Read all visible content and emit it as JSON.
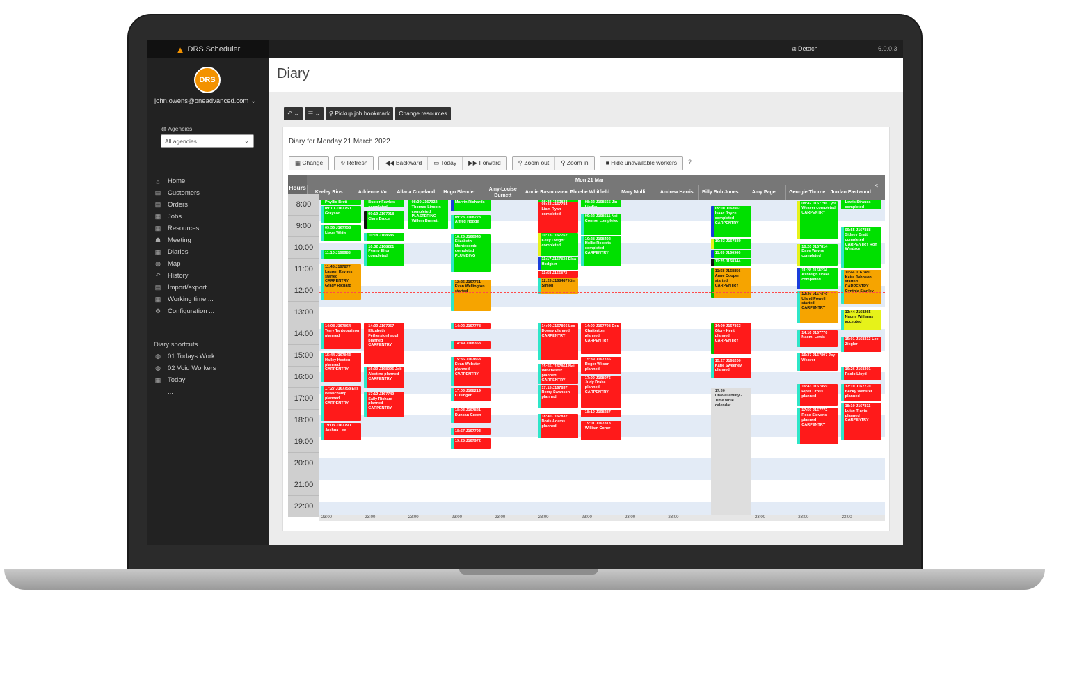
{
  "app": {
    "brand": "DRS Scheduler",
    "logo_text": "DRS",
    "detach_label": "Detach",
    "version": "6.0.0.3"
  },
  "sidebar": {
    "user": "john.owens@oneadvanced.com",
    "agencies_label": "Agencies",
    "agencies_value": "All agencies",
    "nav": [
      {
        "label": "Home",
        "icon": "⌂"
      },
      {
        "label": "Customers",
        "icon": "▤"
      },
      {
        "label": "Orders",
        "icon": "▤"
      },
      {
        "label": "Jobs",
        "icon": "▦"
      },
      {
        "label": "Resources",
        "icon": "▦"
      },
      {
        "label": "Meeting",
        "icon": "☗"
      },
      {
        "label": "Diaries",
        "icon": "▦"
      },
      {
        "label": "Map",
        "icon": "◍"
      },
      {
        "label": "History",
        "icon": "↶"
      },
      {
        "label": "Import/export ...",
        "icon": "▤"
      },
      {
        "label": "Working time ...",
        "icon": "▦"
      },
      {
        "label": "Configuration ...",
        "icon": "⚙"
      }
    ],
    "shortcuts_title": "Diary shortcuts",
    "shortcuts": [
      {
        "label": "01 Todays Work",
        "icon": "◍"
      },
      {
        "label": "02 Void Workers",
        "icon": "◍"
      },
      {
        "label": "Today",
        "icon": "▦"
      },
      {
        "label": "...",
        "icon": ""
      }
    ]
  },
  "page": {
    "title": "Diary"
  },
  "toolbar": {
    "undo": "↶ ⌄",
    "menu": "☰ ⌄",
    "pickup": "Pickup job bookmark",
    "change_resources": "Change resources"
  },
  "diary": {
    "title": "Diary for Monday 21 March 2022",
    "change": "Change",
    "refresh": "Refresh",
    "backward": "Backward",
    "today": "Today",
    "forward": "Forward",
    "zoom_out": "Zoom out",
    "zoom_in": "Zoom in",
    "hide_unavailable": "Hide unavailable workers",
    "help": "?",
    "hours_label": "Hours",
    "date_label": "Mon 21 Mar",
    "workers": [
      "Keeley Rios",
      "Adrienne Vu",
      "Allana Copeland",
      "Hugo Blender",
      "Amy-Louise Burnett",
      "Annie Rasmussen",
      "Phoebe Whitfield",
      "Mary Mulli",
      "Andrew Harris",
      "Billy Bob Jones",
      "Amy Page",
      "Georgie Thorne",
      "Jordan Eastwood"
    ],
    "hours": [
      "8:00",
      "9:00",
      "10:00",
      "11:00",
      "12:00",
      "13:00",
      "14:00",
      "15:00",
      "16:00",
      "17:00",
      "18:00",
      "19:00",
      "20:00",
      "21:00",
      "22:00"
    ],
    "end_label": "23:00",
    "jobs": [
      {
        "col": 0,
        "start": 8.0,
        "end": 8.4,
        "color": "green",
        "edge": "#00e000",
        "text": "Phyllis Brett"
      },
      {
        "col": 0,
        "start": 8.55,
        "end": 9.3,
        "color": "green",
        "edge": "#2ee6c8",
        "text": "09:10 J167750 Grayson"
      },
      {
        "col": 0,
        "start": 9.45,
        "end": 10.2,
        "color": "green",
        "edge": "#2ee6c8",
        "text": "09:36 J167758 Lison White"
      },
      {
        "col": 0,
        "start": 10.6,
        "end": 11.0,
        "color": "green",
        "edge": "#2ee6c8",
        "text": "11:10 J166988"
      },
      {
        "col": 0,
        "start": 11.25,
        "end": 12.9,
        "color": "orange",
        "edge": "#2ee6c8",
        "text": "11:46 J167877 Lauren Keynes started CARPENTRY Grady Richard"
      },
      {
        "col": 0,
        "start": 14.0,
        "end": 15.2,
        "color": "red",
        "edge": "#2ee6c8",
        "text": "14:08 J167864 Terry Tantoparison planned"
      },
      {
        "col": 0,
        "start": 15.35,
        "end": 16.7,
        "color": "red",
        "edge": "#2ee6c8",
        "text": "15:44 J167843 Hailey Heston planned CARPENTRY"
      },
      {
        "col": 0,
        "start": 16.9,
        "end": 18.5,
        "color": "red",
        "edge": "#2ee6c8",
        "text": "17:27 J167758 Elis Beauchamp planned CARPENTRY"
      },
      {
        "col": 0,
        "start": 18.6,
        "end": 19.4,
        "color": "red",
        "edge": "#2ee6c8",
        "text": "19:03 J167790 Joshua Lee"
      },
      {
        "col": 1,
        "start": 8.0,
        "end": 8.6,
        "color": "green",
        "edge": "#00e000",
        "text": "Buster Fawkes completed"
      },
      {
        "col": 1,
        "start": 8.8,
        "end": 9.6,
        "color": "green",
        "edge": "#111111",
        "text": "09:19 J167918 Clare Bruce"
      },
      {
        "col": 1,
        "start": 9.8,
        "end": 10.15,
        "color": "green",
        "edge": "#2ee6c8",
        "text": "10:18 J168585"
      },
      {
        "col": 1,
        "start": 10.3,
        "end": 11.3,
        "color": "green",
        "edge": "#2ee6c8",
        "text": "10:32 J168221 Penny Elton completed"
      },
      {
        "col": 1,
        "start": 14.0,
        "end": 15.9,
        "color": "red",
        "edge": "#ff1a1a",
        "text": "14:00 J167257 Elizabeth Fetherstonhaugh planned CARPENTRY"
      },
      {
        "col": 1,
        "start": 16.0,
        "end": 17.0,
        "color": "red",
        "edge": "#2ee6c8",
        "text": "16:00 J168095 Job Alestine planned CARPENTRY"
      },
      {
        "col": 1,
        "start": 17.15,
        "end": 18.3,
        "color": "red",
        "edge": "#2ee6c8",
        "text": "17:12 J167749 Sally Richard planned CARPENTRY"
      },
      {
        "col": 2,
        "start": 8.0,
        "end": 9.6,
        "color": "green",
        "edge": "#00e000",
        "text": "08:30 J167932 Thomas Lincoln completed PLASTERING Willem Burnett"
      },
      {
        "col": 3,
        "start": 8.0,
        "end": 8.8,
        "color": "green",
        "edge": "#1a3ddb",
        "text": "Marvin Richards"
      },
      {
        "col": 3,
        "start": 8.95,
        "end": 9.6,
        "color": "green",
        "edge": "#2ee6c8",
        "text": "09:23 J168223 Alfred Hodge"
      },
      {
        "col": 3,
        "start": 9.85,
        "end": 11.6,
        "color": "green",
        "edge": "#2ee6c8",
        "text": "10:23 J166946 Elizabeth Montecomb completed PLUMBING"
      },
      {
        "col": 3,
        "start": 11.95,
        "end": 13.4,
        "color": "orange",
        "edge": "#2ee6c8",
        "text": "12:26 J167751 Evan Wellington started"
      },
      {
        "col": 3,
        "start": 14.0,
        "end": 14.25,
        "color": "red",
        "edge": "#2ee6c8",
        "text": "14:02 J167778"
      },
      {
        "col": 3,
        "start": 14.8,
        "end": 15.2,
        "color": "red",
        "edge": "#2ee6c8",
        "text": "14:49 J168353"
      },
      {
        "col": 3,
        "start": 15.55,
        "end": 16.9,
        "color": "red",
        "edge": "#2ee6c8",
        "text": "15:35 J167853 Evan Webster planned CARPENTRY"
      },
      {
        "col": 3,
        "start": 17.0,
        "end": 17.6,
        "color": "red",
        "edge": "#2ee6c8",
        "text": "17:03 J168219 Cusinger"
      },
      {
        "col": 3,
        "start": 17.9,
        "end": 18.6,
        "color": "red",
        "edge": "#2ee6c8",
        "text": "18:03 J167821 Duncan Green"
      },
      {
        "col": 3,
        "start": 18.85,
        "end": 19.15,
        "color": "red",
        "edge": "#2ee6c8",
        "text": "18:57 J167793"
      },
      {
        "col": 3,
        "start": 19.3,
        "end": 19.8,
        "color": "red",
        "edge": "#2ee6c8",
        "text": "19:25 J167972"
      },
      {
        "col": 5,
        "start": 8.0,
        "end": 8.2,
        "color": "green",
        "edge": "#00e000",
        "text": "08:23 J167823"
      },
      {
        "col": 5,
        "start": 8.35,
        "end": 9.8,
        "color": "red",
        "edge": "#ff1a1a",
        "text": "08:33 J167784 Liam Ryan completed"
      },
      {
        "col": 5,
        "start": 9.8,
        "end": 10.85,
        "color": "green",
        "edge": "#e6f21a",
        "text": "10:13 J167762 Kelly Dwight completed"
      },
      {
        "col": 5,
        "start": 10.9,
        "end": 11.5,
        "color": "green",
        "edge": "#1a3ddb",
        "text": "11:17 J167834 Elsa Hodgkin"
      },
      {
        "col": 5,
        "start": 11.55,
        "end": 11.85,
        "color": "red",
        "edge": "#ff1a1a",
        "text": "11:58 J166873"
      },
      {
        "col": 5,
        "start": 11.9,
        "end": 12.6,
        "color": "orange",
        "edge": "#2ee6c8",
        "text": "12:23 J168487 Kim Simon"
      },
      {
        "col": 5,
        "start": 14.0,
        "end": 15.7,
        "color": "red",
        "edge": "#2ee6c8",
        "text": "14:00 J167866 Leo Dowey planned CARPENTRY"
      },
      {
        "col": 5,
        "start": 15.85,
        "end": 16.8,
        "color": "red",
        "edge": "#2ee6c8",
        "text": "15:55 J167864 Neil Winchester planned CARPENTRY"
      },
      {
        "col": 5,
        "start": 16.85,
        "end": 17.9,
        "color": "red",
        "edge": "#2ee6c8",
        "text": "17:15 J167837 Remy Swanson planned"
      },
      {
        "col": 5,
        "start": 18.2,
        "end": 19.3,
        "color": "red",
        "edge": "#2ee6c8",
        "text": "18:40 J167832 Doris Adams planned"
      },
      {
        "col": 6,
        "start": 8.0,
        "end": 8.6,
        "color": "green",
        "edge": "#00e000",
        "text": "08:22 J168565 Jin Lindley"
      },
      {
        "col": 6,
        "start": 8.9,
        "end": 9.9,
        "color": "green",
        "edge": "#2ee6c8",
        "text": "09:22 J168511 Neil Connor completed"
      },
      {
        "col": 6,
        "start": 9.95,
        "end": 11.3,
        "color": "green",
        "edge": "#2ee6c8",
        "text": "10:28 J168492 Hollie Roberts completed CARPENTRY"
      },
      {
        "col": 6,
        "start": 14.0,
        "end": 15.4,
        "color": "red",
        "edge": "#ff1a1a",
        "text": "14:00 J167798 Don Chatterton planned CARPENTRY"
      },
      {
        "col": 6,
        "start": 15.55,
        "end": 16.3,
        "color": "red",
        "edge": "#ff1a1a",
        "text": "15:39 J167785 Roger Wilson planned"
      },
      {
        "col": 6,
        "start": 16.4,
        "end": 17.9,
        "color": "red",
        "edge": "#ff1a1a",
        "text": "17:00 J168076 Judy Drake planned CARPENTRY"
      },
      {
        "col": 6,
        "start": 18.0,
        "end": 18.35,
        "color": "red",
        "edge": "#ff1a1a",
        "text": "18:10 J168287"
      },
      {
        "col": 6,
        "start": 18.5,
        "end": 19.4,
        "color": "red",
        "edge": "#ff1a1a",
        "text": "19:01 J167813 William Coner"
      },
      {
        "col": 9,
        "start": 8.55,
        "end": 10.0,
        "color": "green",
        "edge": "#1a3ddb",
        "text": "09:00 J168961 Isaac Joyce completed CARPENTRY"
      },
      {
        "col": 9,
        "start": 10.05,
        "end": 10.55,
        "color": "green",
        "edge": "#e6f21a",
        "text": "10:33 J167839"
      },
      {
        "col": 9,
        "start": 10.6,
        "end": 10.95,
        "color": "green",
        "edge": "#1a3ddb",
        "text": "11:09 J166966"
      },
      {
        "col": 9,
        "start": 11.0,
        "end": 11.35,
        "color": "green",
        "edge": "#111111",
        "text": "11:25 J168344"
      },
      {
        "col": 9,
        "start": 11.45,
        "end": 12.8,
        "color": "orange",
        "edge": "#00c000",
        "text": "11:58 J168856 Anne Cooper started CARPENTRY"
      },
      {
        "col": 9,
        "start": 14.0,
        "end": 15.4,
        "color": "red",
        "edge": "#00c000",
        "text": "14:00 J167863 Glory Kent planned CARPENTRY"
      },
      {
        "col": 9,
        "start": 15.6,
        "end": 16.5,
        "color": "red",
        "edge": "#2ee6c8",
        "text": "15:27 J168200 Katie Sweeney planned"
      },
      {
        "col": 9,
        "start": 17.0,
        "end": 23.0,
        "color": "grey",
        "edge": "#dedede",
        "text": "17:30 Unavailability - Time table calendar"
      },
      {
        "col": 11,
        "start": 8.3,
        "end": 10.1,
        "color": "green",
        "edge": "#e6f21a",
        "text": "08:42 J167796 Lyra Weaver completed CARPENTRY"
      },
      {
        "col": 11,
        "start": 10.3,
        "end": 11.3,
        "color": "green",
        "edge": "#e6f21a",
        "text": "10:20 J167814 Dave Wayne completed"
      },
      {
        "col": 11,
        "start": 11.4,
        "end": 12.4,
        "color": "green",
        "edge": "#1a3ddb",
        "text": "11:28 J168234 Ashleigh Drake completed"
      },
      {
        "col": 11,
        "start": 12.5,
        "end": 14.0,
        "color": "orange",
        "edge": "#2ee6c8",
        "text": "12:36 J167879 Uland Powell started CARPENTRY"
      },
      {
        "col": 11,
        "start": 14.3,
        "end": 15.1,
        "color": "red",
        "edge": "#2ee6c8",
        "text": "14:16 J167776 Naomi Lewis"
      },
      {
        "col": 11,
        "start": 15.35,
        "end": 16.2,
        "color": "red",
        "edge": "#2ee6c8",
        "text": "15:37 J167807 Joy Weaver"
      },
      {
        "col": 11,
        "start": 16.8,
        "end": 17.8,
        "color": "red",
        "edge": "#2ee6c8",
        "text": "16:43 J167859 Piper Cross planned"
      },
      {
        "col": 11,
        "start": 17.9,
        "end": 19.6,
        "color": "red",
        "edge": "#2ee6c8",
        "text": "17:50 J167772 Rose Stevens planned CARPENTRY"
      },
      {
        "col": 12,
        "start": 8.0,
        "end": 8.7,
        "color": "green",
        "edge": "#00e000",
        "text": "Lewis Strauss completed"
      },
      {
        "col": 12,
        "start": 9.55,
        "end": 11.4,
        "color": "green",
        "edge": "#2ee6c8",
        "text": "09:55 J167888 Sidney Brett completed CARPENTRY Ron Windsor"
      },
      {
        "col": 12,
        "start": 11.5,
        "end": 13.1,
        "color": "orange",
        "edge": "#2ee6c8",
        "text": "11:44 J167880 Keira Johnson started CARPENTRY Cynthia Stanley"
      },
      {
        "col": 12,
        "start": 13.35,
        "end": 14.3,
        "color": "yellow",
        "edge": "#2ee6c8",
        "text": "13:44 J168265 Naomi Williams accepted"
      },
      {
        "col": 12,
        "start": 14.6,
        "end": 15.3,
        "color": "red",
        "edge": "#2ee6c8",
        "text": "15:01 J168313 Lee Ziegler"
      },
      {
        "col": 12,
        "start": 16.0,
        "end": 16.6,
        "color": "red",
        "edge": "#2ee6c8",
        "text": "16:26 J168301 Paolo Lloyd"
      },
      {
        "col": 12,
        "start": 16.8,
        "end": 17.6,
        "color": "red",
        "edge": "#2ee6c8",
        "text": "17:10 J167770 Becky Webster planned"
      },
      {
        "col": 12,
        "start": 17.7,
        "end": 19.4,
        "color": "red",
        "edge": "#2ee6c8",
        "text": "18:10 J167811 Loise Travis planned CARPENTRY"
      }
    ],
    "now_hour": 12.55
  }
}
